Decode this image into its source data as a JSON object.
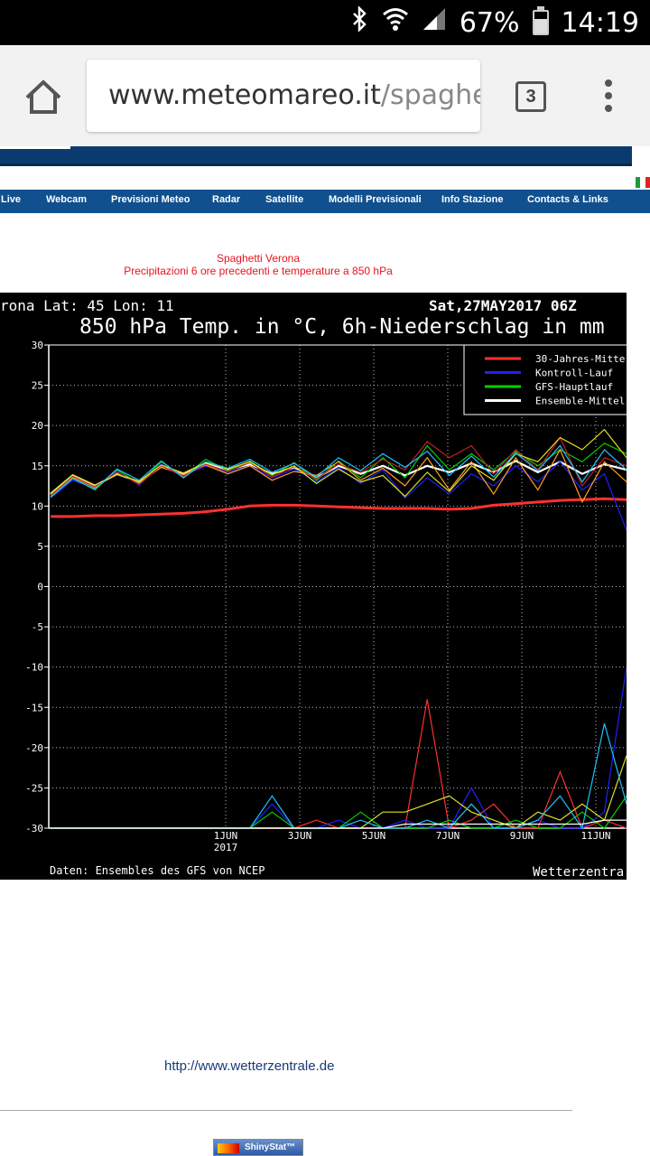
{
  "status_bar": {
    "battery_percent": "67%",
    "battery_level": 0.67,
    "time": "14:19",
    "icons": [
      "bluetooth-icon",
      "wifi-icon",
      "signal-icon",
      "battery-icon"
    ]
  },
  "browser": {
    "url_host": "www.meteomareo.it",
    "url_path": "/spaghe",
    "tab_count": "3"
  },
  "nav": {
    "items": [
      "Live",
      "Webcam",
      "Previsioni Meteo",
      "Radar",
      "Satellite",
      "Modelli Previsionali",
      "Info Stazione",
      "Contacts & Links"
    ]
  },
  "caption": {
    "line1": "Spaghetti Verona",
    "line2": "Precipitazioni 6 ore precedenti e temperature a 850 hPa"
  },
  "chart_data": {
    "type": "line",
    "header_left": "rona   Lat: 45 Lon: 11",
    "header_right": "Sat,27MAY2017 06Z",
    "title": "850 hPa Temp. in °C, 6h-Niederschlag in mm",
    "footer_left": "Daten: Ensembles des GFS von NCEP",
    "footer_right": "Wetterzentra",
    "y_ticks": [
      "30",
      "25",
      "20",
      "15",
      "10",
      "5",
      "0",
      "-5",
      "-10",
      "-15",
      "-20",
      "-25",
      "-30"
    ],
    "ylim": [
      -30,
      30
    ],
    "x_labels": [
      "1JUN",
      "3JUN",
      "5JUN",
      "7JUN",
      "9JUN",
      "11JUN"
    ],
    "x_year": "2017",
    "legend": [
      {
        "label": "30-Jahres-Mitte",
        "color": "#ff3030"
      },
      {
        "label": "Kontroll-Lauf",
        "color": "#2020ff"
      },
      {
        "label": "GFS-Hauptlauf",
        "color": "#00d000"
      },
      {
        "label": "Ensemble-Mittel",
        "color": "#ffffff"
      }
    ],
    "series": [
      {
        "name": "30-Jahres-Mitte",
        "color": "#ff3030",
        "values": [
          8.7,
          8.7,
          8.8,
          8.8,
          8.9,
          9.0,
          9.1,
          9.3,
          9.6,
          10.0,
          10.1,
          10.1,
          10.0,
          9.9,
          9.8,
          9.7,
          9.7,
          9.7,
          9.6,
          9.7,
          10.1,
          10.3,
          10.5,
          10.7,
          10.8,
          10.9,
          10.8
        ]
      },
      {
        "name": "Ensemble-Mittel",
        "color": "#ffffff",
        "values": [
          11.5,
          13.8,
          12.5,
          14.0,
          13.0,
          15.0,
          14.0,
          15.3,
          14.5,
          15.2,
          14.0,
          14.8,
          13.5,
          15.0,
          14.0,
          15.0,
          13.8,
          15.0,
          14.2,
          15.3,
          14.2,
          15.6,
          14.2,
          15.5,
          14.0,
          15.2,
          14.5
        ]
      },
      {
        "name": "GFS-Hauptlauf",
        "color": "#00d000",
        "values": [
          11.2,
          13.5,
          12.0,
          14.5,
          12.8,
          15.5,
          13.6,
          15.8,
          14.4,
          15.6,
          13.8,
          15.4,
          13.2,
          15.6,
          13.5,
          16.0,
          13.5,
          17.5,
          14.5,
          16.5,
          14.5,
          16.8,
          15.0,
          17.0,
          15.5,
          17.8,
          16.5
        ]
      },
      {
        "name": "Kontroll-Lauf",
        "color": "#2020ff",
        "values": [
          11.0,
          13.2,
          12.2,
          14.3,
          12.6,
          15.2,
          13.8,
          15.0,
          14.2,
          15.0,
          13.5,
          14.6,
          13.0,
          14.8,
          12.8,
          14.5,
          11.0,
          13.5,
          11.5,
          14.0,
          12.5,
          15.0,
          13.0,
          15.5,
          12.0,
          14.0,
          7.0
        ]
      },
      {
        "name": "",
        "color": "#ffa020",
        "values": [
          11.4,
          13.6,
          12.3,
          14.1,
          12.9,
          14.8,
          13.9,
          15.1,
          14.0,
          15.0,
          13.2,
          14.3,
          13.8,
          15.5,
          13.2,
          14.7,
          12.5,
          16.0,
          12.0,
          15.5,
          11.5,
          16.0,
          12.0,
          17.0,
          10.5,
          15.5,
          13.0
        ]
      },
      {
        "name": "",
        "color": "#c02020",
        "values": [
          11.3,
          13.7,
          12.4,
          14.2,
          12.7,
          15.0,
          13.7,
          15.2,
          14.3,
          15.4,
          13.6,
          14.9,
          13.4,
          15.2,
          14.2,
          15.8,
          14.5,
          18.0,
          16.0,
          17.5,
          14.0,
          17.0,
          14.5,
          18.5,
          12.5,
          16.0,
          15.0
        ]
      },
      {
        "name": "",
        "color": "#e0e020",
        "values": [
          11.6,
          13.9,
          12.6,
          13.9,
          13.1,
          15.1,
          14.1,
          15.4,
          14.6,
          15.5,
          13.9,
          15.0,
          12.8,
          14.6,
          13.0,
          13.8,
          11.2,
          14.2,
          11.8,
          15.0,
          13.2,
          16.5,
          15.5,
          18.5,
          17.0,
          19.5,
          16.0
        ]
      },
      {
        "name": "",
        "color": "#20c0ff",
        "values": [
          11.1,
          13.4,
          12.1,
          14.6,
          13.2,
          15.6,
          13.5,
          15.5,
          14.7,
          15.8,
          14.2,
          15.3,
          13.6,
          16.0,
          14.4,
          16.5,
          14.8,
          16.8,
          13.8,
          16.2,
          13.6,
          16.6,
          14.4,
          17.5,
          13.0,
          17.0,
          14.5
        ]
      }
    ],
    "precip_series": [
      {
        "color": "#ff3030",
        "values": [
          0,
          0,
          0,
          0,
          0,
          0,
          0,
          0,
          0,
          0,
          0,
          0,
          1,
          0,
          0,
          0,
          0,
          16,
          0,
          1,
          3,
          0,
          0,
          7,
          0,
          1,
          0
        ]
      },
      {
        "color": "#2020ff",
        "values": [
          0,
          0,
          0,
          0,
          0,
          0,
          0,
          0,
          0,
          0,
          3,
          0,
          0,
          1,
          0,
          0,
          1,
          0,
          0,
          5,
          0,
          0,
          1,
          0,
          0,
          2,
          20
        ]
      },
      {
        "color": "#00d000",
        "values": [
          0,
          0,
          0,
          0,
          0,
          0,
          0,
          0,
          0,
          0,
          2,
          0,
          0,
          0,
          2,
          0,
          0,
          0,
          1,
          0,
          0,
          1,
          0,
          0,
          2,
          0,
          4
        ]
      },
      {
        "color": "#e0e020",
        "values": [
          0,
          0,
          0,
          0,
          0,
          0,
          0,
          0,
          0,
          0,
          0,
          0,
          0,
          0,
          0,
          2,
          2,
          3,
          4,
          2,
          1,
          0,
          2,
          1,
          3,
          1,
          9
        ]
      },
      {
        "color": "#20c0ff",
        "values": [
          0,
          0,
          0,
          0,
          0,
          0,
          0,
          0,
          0,
          0,
          4,
          0,
          0,
          0,
          1,
          0,
          0,
          1,
          0,
          3,
          0,
          0,
          1,
          4,
          0,
          13,
          3
        ]
      },
      {
        "color": "#ffffff",
        "values": [
          0,
          0,
          0,
          0,
          0,
          0,
          0,
          0,
          0,
          0,
          0,
          0,
          0,
          0,
          0,
          0,
          0.5,
          0.5,
          0.5,
          0.5,
          0.5,
          0.5,
          0.5,
          0.5,
          0.5,
          1,
          1
        ]
      }
    ]
  },
  "footer": {
    "link": "http://www.wetterzentrale.de",
    "badge": "ShinyStat™"
  }
}
